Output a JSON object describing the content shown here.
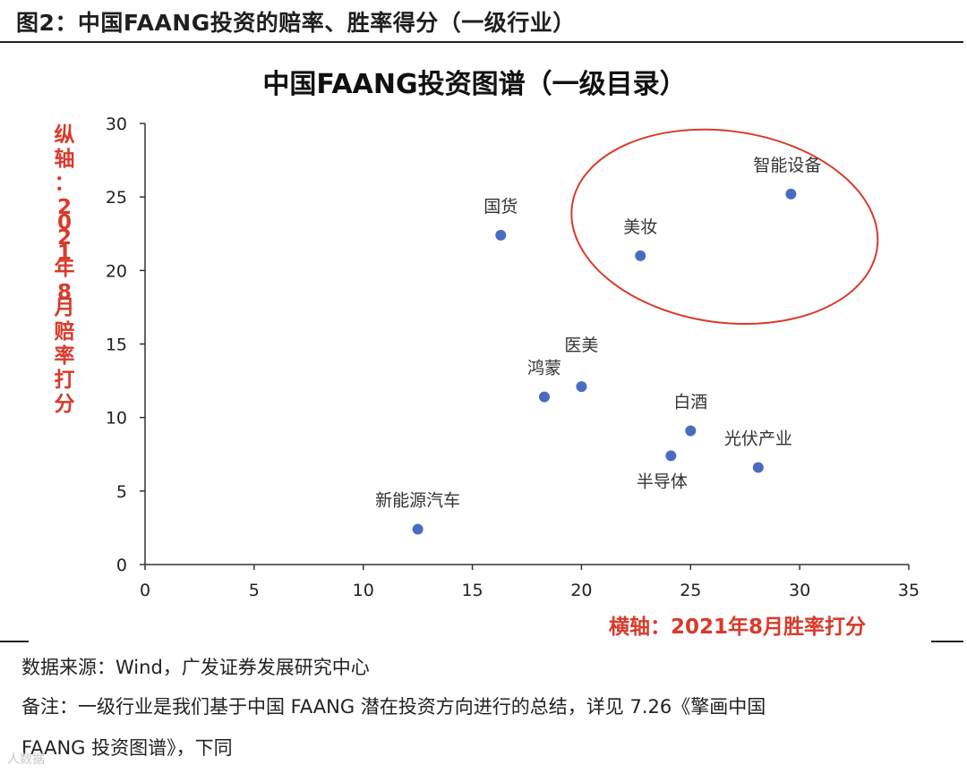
{
  "figure_header": "图2：中国FAANG投资的赔率、胜率得分（一级行业）",
  "chart_data": {
    "type": "scatter",
    "title": "中国FAANG投资图谱（一级目录）",
    "xlabel": "横轴：2021年8月胜率打分",
    "ylabel": "纵轴：2021年8月赔率打分",
    "xlim": [
      0,
      35
    ],
    "ylim": [
      0,
      30
    ],
    "xticks": [
      0,
      5,
      10,
      15,
      20,
      25,
      30,
      35
    ],
    "yticks": [
      0,
      5,
      10,
      15,
      20,
      25,
      30
    ],
    "grid": false,
    "points": [
      {
        "label": "智能设备",
        "x": 29.6,
        "y": 25.2
      },
      {
        "label": "美妆",
        "x": 22.7,
        "y": 21.0
      },
      {
        "label": "国货",
        "x": 16.3,
        "y": 22.4
      },
      {
        "label": "鸿蒙",
        "x": 18.3,
        "y": 11.4
      },
      {
        "label": "医美",
        "x": 20.0,
        "y": 12.1
      },
      {
        "label": "白酒",
        "x": 25.0,
        "y": 9.1
      },
      {
        "label": "半导体",
        "x": 24.1,
        "y": 7.4
      },
      {
        "label": "光伏产业",
        "x": 28.1,
        "y": 6.6
      },
      {
        "label": "新能源汽车",
        "x": 12.5,
        "y": 2.4
      }
    ],
    "highlight": {
      "shape": "ellipse",
      "encloses": [
        "智能设备",
        "美妆"
      ]
    },
    "colors": {
      "marker": "#4a6cc0",
      "axis_label": "#d93a2b",
      "highlight": "#d93a2b"
    }
  },
  "footer": {
    "source": "数据来源：Wind，广发证券发展研究中心",
    "note_line1": "备注：一级行业是我们基于中国 FAANG 潜在投资方向进行的总结，详见 7.26《擎画中国",
    "note_line2": "FAANG 投资图谱》，下同"
  },
  "watermark": "人数据"
}
